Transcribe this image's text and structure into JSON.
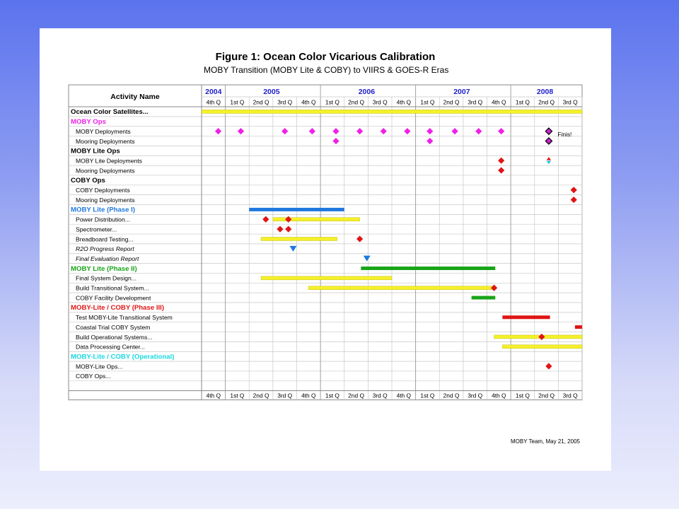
{
  "title": "Figure 1:  Ocean Color Vicarious Calibration",
  "subtitle": "MOBY Transition (MOBY Lite & COBY) to VIIRS & GOES-R Eras",
  "footer": "MOBY Team, May 21, 2005",
  "colors": {
    "yellow": "#f5f02a",
    "blue": "#1f78e0",
    "green": "#18a518",
    "red": "#e01414",
    "magenta": "#f020e8",
    "grid": "#c8c8c8",
    "year": "#2020cc"
  },
  "chart_data": {
    "type": "table",
    "activity_header": "Activity Name",
    "years": [
      {
        "label": "2004",
        "start": 0,
        "span": 1
      },
      {
        "label": "2005",
        "start": 1,
        "span": 4
      },
      {
        "label": "2006",
        "start": 5,
        "span": 4
      },
      {
        "label": "2007",
        "start": 9,
        "span": 4
      },
      {
        "label": "2008",
        "start": 13,
        "span": 3
      }
    ],
    "quarters": [
      "4th Q",
      "1st Q",
      "2nd Q",
      "3rd Q",
      "4th Q",
      "1st Q",
      "2nd Q",
      "3rd Q",
      "4th Q",
      "1st Q",
      "2nd Q",
      "3rd Q",
      "4th Q",
      "1st Q",
      "2nd Q",
      "3rd Q"
    ],
    "rows": [
      {
        "label": "Ocean Color Satellites...",
        "kind": "bold-header",
        "bars": [
          {
            "start": 0,
            "end": 16,
            "color": "yellow"
          }
        ]
      },
      {
        "label": "MOBY Ops",
        "kind": "group",
        "color": "magenta"
      },
      {
        "label": "MOBY Deployments",
        "kind": "item",
        "markers": [
          {
            "at": 0.7,
            "shape": "diamond",
            "color": "magenta"
          },
          {
            "at": 1.65,
            "shape": "diamond",
            "color": "magenta"
          },
          {
            "at": 3.5,
            "shape": "diamond",
            "color": "magenta"
          },
          {
            "at": 4.65,
            "shape": "diamond",
            "color": "magenta"
          },
          {
            "at": 5.65,
            "shape": "diamond",
            "color": "magenta"
          },
          {
            "at": 6.65,
            "shape": "diamond",
            "color": "magenta"
          },
          {
            "at": 7.65,
            "shape": "diamond",
            "color": "magenta"
          },
          {
            "at": 8.65,
            "shape": "diamond",
            "color": "magenta"
          },
          {
            "at": 9.6,
            "shape": "diamond",
            "color": "magenta"
          },
          {
            "at": 10.65,
            "shape": "diamond",
            "color": "magenta"
          },
          {
            "at": 11.65,
            "shape": "diamond",
            "color": "magenta"
          },
          {
            "at": 12.6,
            "shape": "diamond",
            "color": "magenta"
          },
          {
            "at": 14.6,
            "shape": "diamond-outlined",
            "color": "#cc22cc"
          }
        ],
        "note": "Finis!"
      },
      {
        "label": "Mooring Deployments",
        "kind": "item",
        "markers": [
          {
            "at": 5.65,
            "shape": "diamond",
            "color": "magenta"
          },
          {
            "at": 9.6,
            "shape": "diamond",
            "color": "magenta"
          },
          {
            "at": 14.6,
            "shape": "diamond-outlined",
            "color": "#cc22cc"
          }
        ]
      },
      {
        "label": "MOBY Lite Ops",
        "kind": "group",
        "color": "#000000"
      },
      {
        "label": "MOBY Lite Deployments",
        "kind": "item",
        "markers": [
          {
            "at": 12.6,
            "shape": "diamond",
            "color": "red"
          },
          {
            "at": 14.6,
            "shape": "split-triangles",
            "color": "red"
          }
        ]
      },
      {
        "label": "Mooring Deployments",
        "kind": "item",
        "markers": [
          {
            "at": 12.6,
            "shape": "diamond",
            "color": "red"
          }
        ]
      },
      {
        "label": "COBY Ops",
        "kind": "group",
        "color": "#000000"
      },
      {
        "label": "COBY Deployments",
        "kind": "item",
        "markers": [
          {
            "at": 15.65,
            "shape": "diamond",
            "color": "red"
          }
        ]
      },
      {
        "label": "Mooring Deployments",
        "kind": "item",
        "markers": [
          {
            "at": 15.65,
            "shape": "diamond",
            "color": "red"
          }
        ]
      },
      {
        "label": "MOBY Lite (Phase I)",
        "kind": "group",
        "color": "blue",
        "bars": [
          {
            "start": 2.0,
            "end": 6.0,
            "color": "blue"
          }
        ]
      },
      {
        "label": "Power Distribution...",
        "kind": "item",
        "bars": [
          {
            "start": 3.0,
            "end": 6.65,
            "color": "yellow"
          }
        ],
        "markers": [
          {
            "at": 2.7,
            "shape": "diamond",
            "color": "red"
          },
          {
            "at": 3.65,
            "shape": "diamond",
            "color": "red"
          }
        ]
      },
      {
        "label": "Spectrometer...",
        "kind": "item",
        "markers": [
          {
            "at": 3.3,
            "shape": "diamond",
            "color": "red"
          },
          {
            "at": 3.65,
            "shape": "diamond",
            "color": "red"
          }
        ]
      },
      {
        "label": "Breadboard Testing...",
        "kind": "item",
        "bars": [
          {
            "start": 2.5,
            "end": 5.7,
            "color": "yellow"
          }
        ],
        "markers": [
          {
            "at": 6.65,
            "shape": "diamond",
            "color": "red"
          }
        ]
      },
      {
        "label": "R2O Progress Report",
        "kind": "italic",
        "markers": [
          {
            "at": 3.85,
            "shape": "triangle-down",
            "color": "blue"
          }
        ]
      },
      {
        "label": "Final Evaluation Report",
        "kind": "italic",
        "markers": [
          {
            "at": 6.95,
            "shape": "triangle-down",
            "color": "blue"
          }
        ]
      },
      {
        "label": "MOBY Lite (Phase II)",
        "kind": "group",
        "color": "green",
        "bars": [
          {
            "start": 6.7,
            "end": 12.35,
            "color": "green"
          }
        ]
      },
      {
        "label": "Final System Design...",
        "kind": "item",
        "bars": [
          {
            "start": 2.5,
            "end": 8.0,
            "color": "yellow"
          }
        ]
      },
      {
        "label": "Build Transitional System...",
        "kind": "item",
        "bars": [
          {
            "start": 4.5,
            "end": 12.3,
            "color": "yellow"
          }
        ],
        "markers": [
          {
            "at": 12.3,
            "shape": "diamond",
            "color": "red"
          }
        ]
      },
      {
        "label": "COBY Facility Development",
        "kind": "item",
        "bars": [
          {
            "start": 11.35,
            "end": 12.35,
            "color": "green"
          }
        ]
      },
      {
        "label": "MOBY-Lite / COBY (Phase III)",
        "kind": "group",
        "color": "red"
      },
      {
        "label": "Test MOBY-Lite Transitional System",
        "kind": "item",
        "bars": [
          {
            "start": 12.65,
            "end": 14.65,
            "color": "red"
          }
        ]
      },
      {
        "label": "Coastal Trial COBY System",
        "kind": "item",
        "bars": [
          {
            "start": 15.7,
            "end": 16.0,
            "color": "red"
          }
        ]
      },
      {
        "label": "Build Operational Systems...",
        "kind": "item",
        "bars": [
          {
            "start": 12.3,
            "end": 16.0,
            "color": "yellow"
          }
        ],
        "markers": [
          {
            "at": 14.3,
            "shape": "diamond",
            "color": "red"
          }
        ]
      },
      {
        "label": "Data Processing Center...",
        "kind": "item",
        "bars": [
          {
            "start": 12.65,
            "end": 16.0,
            "color": "yellow"
          }
        ]
      },
      {
        "label": "MOBY-Lite / COBY (Operational)",
        "kind": "group",
        "color": "cyan"
      },
      {
        "label": "MOBY-Lite Ops...",
        "kind": "item",
        "markers": [
          {
            "at": 14.6,
            "shape": "diamond",
            "color": "red"
          }
        ]
      },
      {
        "label": "COBY Ops...",
        "kind": "item"
      },
      {
        "label": "",
        "kind": "blank"
      }
    ]
  }
}
